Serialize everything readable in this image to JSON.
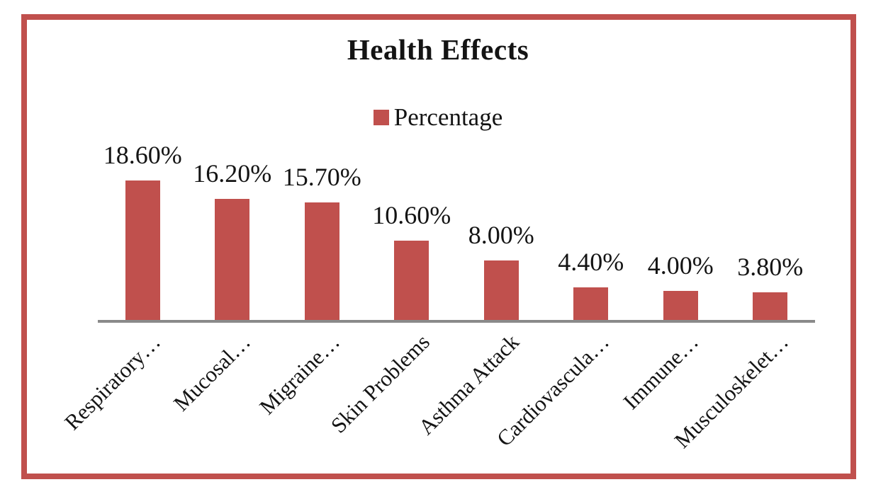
{
  "window": {
    "background_color": "#FFFFFF",
    "frame_color": "#C0504D"
  },
  "chart": {
    "title": "Health Effects",
    "legend": {
      "label": "Percentage",
      "marker_color": "#C0504D"
    }
  },
  "chart_data": {
    "type": "bar",
    "title": "Health Effects",
    "categories": [
      "Respiratory…",
      "Mucosal…",
      "Migraine…",
      "Skin Problems",
      "Asthma Attack",
      "Cardiovascula…",
      "Immune…",
      "Musculoskelet…"
    ],
    "series": [
      {
        "name": "Percentage",
        "values": [
          18.6,
          16.2,
          15.7,
          10.6,
          8.0,
          4.4,
          4.0,
          3.8
        ],
        "color": "#C0504D"
      }
    ],
    "data_labels": [
      "18.60%",
      "16.20%",
      "15.70%",
      "10.60%",
      "8.00%",
      "4.40%",
      "4.00%",
      "3.80%"
    ],
    "data_label_format": "0.00%",
    "xlabel": "",
    "ylabel": "",
    "ylim": [
      0,
      20
    ],
    "y_axis_visible": false,
    "grid": false,
    "baseline_color": "#8A8A8A",
    "legend_position": "top-center",
    "category_label_rotation_deg": 45
  }
}
